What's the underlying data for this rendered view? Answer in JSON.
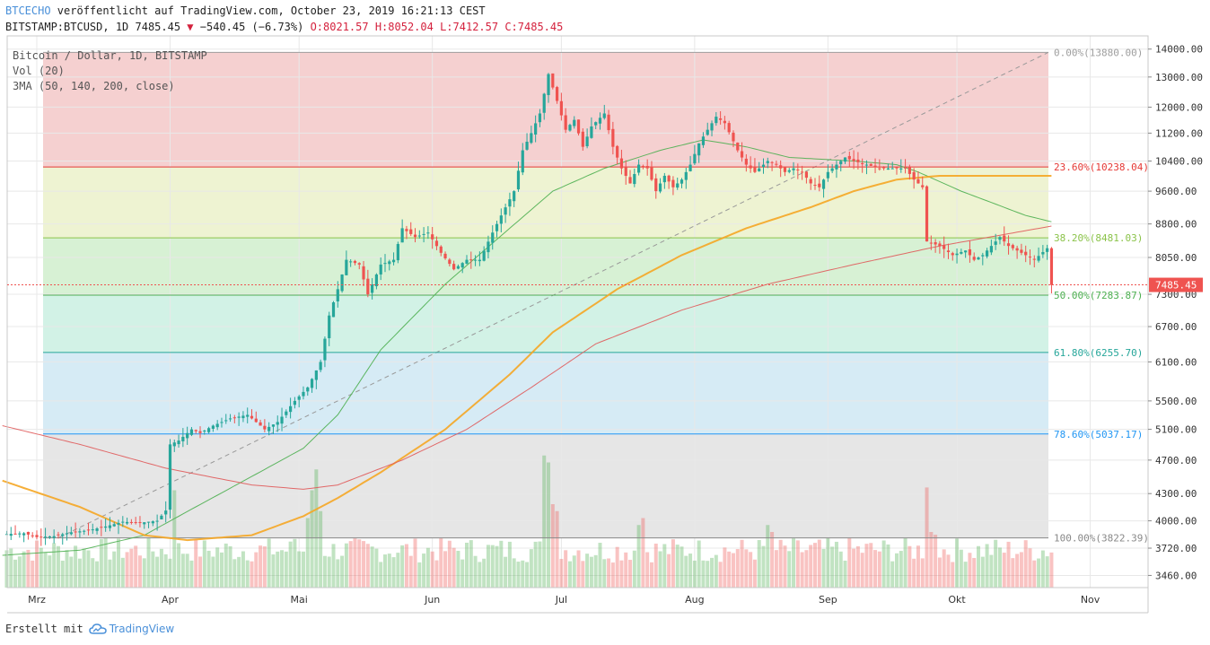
{
  "header": {
    "publisher": "BTCECHO",
    "published_text": " veröffentlicht auf TradingView.com, October 23, 2019 16:21:13 CEST",
    "symbol": "BITSTAMP:BTCUSD, 1D 7485.45",
    "change": " −540.45 (−6.73%)",
    "o": " O:8021.57",
    "h": " H:8052.04",
    "l": " L:7412.57",
    "c": " C:7485.45"
  },
  "legend": {
    "title": "Bitcoin / Dollar, 1D, BITSTAMP",
    "vol": "Vol (20)",
    "ma": "3MA (50, 140, 200, close)"
  },
  "footer": {
    "created": "Erstellt mit",
    "brand": "TradingView"
  },
  "colors": {
    "up": "#26a69a",
    "down": "#ef5350",
    "ma50": "#4caf50",
    "ma140": "#f5a623",
    "ma200": "#e05a5a"
  },
  "chart_data": {
    "type": "candlestick",
    "yscale": "log",
    "ylim": [
      3350,
      14500
    ],
    "y_ticks": [
      "14000.00",
      "13000.00",
      "12000.00",
      "11200.00",
      "10400.00",
      "9600.00",
      "8800.00",
      "8050.00",
      "7300.00",
      "6700.00",
      "6100.00",
      "5500.00",
      "5100.00",
      "4700.00",
      "4300.00",
      "4000.00",
      "3720.00",
      "3460.00"
    ],
    "x_ticks": [
      {
        "label": "Mrz",
        "day": 0
      },
      {
        "label": "Apr",
        "day": 31
      },
      {
        "label": "Mai",
        "day": 61
      },
      {
        "label": "Jun",
        "day": 92
      },
      {
        "label": "Jul",
        "day": 122
      },
      {
        "label": "Aug",
        "day": 153
      },
      {
        "label": "Sep",
        "day": 184
      },
      {
        "label": "Okt",
        "day": 214
      },
      {
        "label": "Nov",
        "day": 245
      }
    ],
    "last_price": "7485.45",
    "fibonacci": [
      {
        "level": "0.00%",
        "value": "13880.00",
        "price": 13880,
        "color": "#9e9e9e"
      },
      {
        "level": "23.60%",
        "value": "10238.04",
        "price": 10238.04,
        "color": "#e53935"
      },
      {
        "level": "38.20%",
        "value": "8481.03",
        "price": 8481.03,
        "color": "#8bc34a"
      },
      {
        "level": "50.00%",
        "value": "7283.87",
        "price": 7283.87,
        "color": "#4caf50"
      },
      {
        "level": "61.80%",
        "value": "6255.70",
        "price": 6255.7,
        "color": "#26a69a"
      },
      {
        "level": "78.60%",
        "value": "5037.17",
        "price": 5037.17,
        "color": "#2196f3"
      },
      {
        "level": "100.00%",
        "value": "3822.39",
        "price": 3822.39,
        "color": "#888888"
      }
    ],
    "price_anchors": [
      [
        -8,
        3860
      ],
      [
        -3,
        3870
      ],
      [
        0,
        3830
      ],
      [
        4,
        3840
      ],
      [
        8,
        3880
      ],
      [
        12,
        3900
      ],
      [
        16,
        3940
      ],
      [
        20,
        3990
      ],
      [
        24,
        3980
      ],
      [
        28,
        4000
      ],
      [
        30,
        4110
      ],
      [
        31,
        4900
      ],
      [
        33,
        4950
      ],
      [
        36,
        5100
      ],
      [
        38,
        5050
      ],
      [
        41,
        5150
      ],
      [
        45,
        5250
      ],
      [
        49,
        5300
      ],
      [
        51,
        5200
      ],
      [
        53,
        5100
      ],
      [
        56,
        5200
      ],
      [
        60,
        5500
      ],
      [
        63,
        5700
      ],
      [
        66,
        6100
      ],
      [
        68,
        6900
      ],
      [
        70,
        7400
      ],
      [
        72,
        8000
      ],
      [
        75,
        7900
      ],
      [
        77,
        7300
      ],
      [
        80,
        7900
      ],
      [
        83,
        8000
      ],
      [
        85,
        8700
      ],
      [
        88,
        8500
      ],
      [
        91,
        8600
      ],
      [
        94,
        8150
      ],
      [
        97,
        7800
      ],
      [
        100,
        8000
      ],
      [
        103,
        8000
      ],
      [
        106,
        8600
      ],
      [
        108,
        9000
      ],
      [
        111,
        9600
      ],
      [
        113,
        10700
      ],
      [
        115,
        11200
      ],
      [
        117,
        11800
      ],
      [
        119,
        13100
      ],
      [
        121,
        12200
      ],
      [
        123,
        11300
      ],
      [
        125,
        11600
      ],
      [
        127,
        10800
      ],
      [
        129,
        11400
      ],
      [
        132,
        11800
      ],
      [
        134,
        10800
      ],
      [
        136,
        10200
      ],
      [
        138,
        9800
      ],
      [
        140,
        10300
      ],
      [
        142,
        10200
      ],
      [
        144,
        9600
      ],
      [
        146,
        10000
      ],
      [
        148,
        9700
      ],
      [
        150,
        9900
      ],
      [
        152,
        10300
      ],
      [
        154,
        10900
      ],
      [
        156,
        11300
      ],
      [
        158,
        11700
      ],
      [
        160,
        11500
      ],
      [
        163,
        10700
      ],
      [
        165,
        10300
      ],
      [
        167,
        10100
      ],
      [
        170,
        10400
      ],
      [
        172,
        10300
      ],
      [
        174,
        10100
      ],
      [
        176,
        10200
      ],
      [
        178,
        10100
      ],
      [
        180,
        9800
      ],
      [
        182,
        9700
      ],
      [
        184,
        10100
      ],
      [
        186,
        10300
      ],
      [
        188,
        10500
      ],
      [
        190,
        10400
      ],
      [
        193,
        10300
      ],
      [
        196,
        10200
      ],
      [
        199,
        10200
      ],
      [
        202,
        10200
      ],
      [
        204,
        9900
      ],
      [
        206,
        9700
      ],
      [
        207,
        8400
      ],
      [
        210,
        8300
      ],
      [
        213,
        8100
      ],
      [
        216,
        8200
      ],
      [
        218,
        8000
      ],
      [
        220,
        8100
      ],
      [
        222,
        8300
      ],
      [
        224,
        8500
      ],
      [
        226,
        8300
      ],
      [
        228,
        8200
      ],
      [
        230,
        8100
      ],
      [
        232,
        8000
      ],
      [
        235,
        8250
      ],
      [
        236,
        7485
      ]
    ],
    "ma_series": [
      {
        "name": "MA 50",
        "period": 50,
        "color": "#4caf50"
      },
      {
        "name": "MA 140",
        "period": 140,
        "color": "#f5a623"
      },
      {
        "name": "MA 200",
        "period": 200,
        "color": "#e05a5a"
      }
    ],
    "ma_anchors": {
      "ma50": [
        [
          -8,
          3650
        ],
        [
          10,
          3700
        ],
        [
          25,
          3850
        ],
        [
          35,
          4100
        ],
        [
          50,
          4500
        ],
        [
          62,
          4850
        ],
        [
          70,
          5300
        ],
        [
          80,
          6300
        ],
        [
          95,
          7500
        ],
        [
          110,
          8700
        ],
        [
          120,
          9600
        ],
        [
          132,
          10200
        ],
        [
          145,
          10700
        ],
        [
          155,
          11000
        ],
        [
          165,
          10800
        ],
        [
          175,
          10500
        ],
        [
          190,
          10400
        ],
        [
          200,
          10300
        ],
        [
          205,
          10100
        ],
        [
          215,
          9600
        ],
        [
          230,
          9000
        ],
        [
          236,
          8850
        ]
      ],
      "ma140": [
        [
          -8,
          4450
        ],
        [
          10,
          4150
        ],
        [
          25,
          3850
        ],
        [
          35,
          3800
        ],
        [
          50,
          3850
        ],
        [
          62,
          4050
        ],
        [
          70,
          4250
        ],
        [
          80,
          4550
        ],
        [
          95,
          5100
        ],
        [
          110,
          5900
        ],
        [
          120,
          6600
        ],
        [
          135,
          7400
        ],
        [
          150,
          8100
        ],
        [
          165,
          8700
        ],
        [
          180,
          9200
        ],
        [
          190,
          9600
        ],
        [
          200,
          9900
        ],
        [
          210,
          10000
        ],
        [
          236,
          10000
        ]
      ],
      "ma200": [
        [
          -8,
          5150
        ],
        [
          10,
          4900
        ],
        [
          30,
          4600
        ],
        [
          50,
          4400
        ],
        [
          62,
          4350
        ],
        [
          70,
          4400
        ],
        [
          85,
          4700
        ],
        [
          100,
          5100
        ],
        [
          115,
          5700
        ],
        [
          130,
          6400
        ],
        [
          150,
          7000
        ],
        [
          170,
          7500
        ],
        [
          190,
          7900
        ],
        [
          210,
          8300
        ],
        [
          236,
          8750
        ]
      ]
    },
    "volume_max_pct": 100,
    "volume_spikes": [
      [
        32,
        70
      ],
      [
        60,
        35
      ],
      [
        63,
        50
      ],
      [
        64,
        70
      ],
      [
        65,
        85
      ],
      [
        66,
        55
      ],
      [
        118,
        95
      ],
      [
        119,
        90
      ],
      [
        120,
        60
      ],
      [
        121,
        55
      ],
      [
        140,
        45
      ],
      [
        141,
        50
      ],
      [
        170,
        45
      ],
      [
        171,
        40
      ],
      [
        207,
        72
      ],
      [
        208,
        40
      ],
      [
        209,
        38
      ]
    ]
  }
}
